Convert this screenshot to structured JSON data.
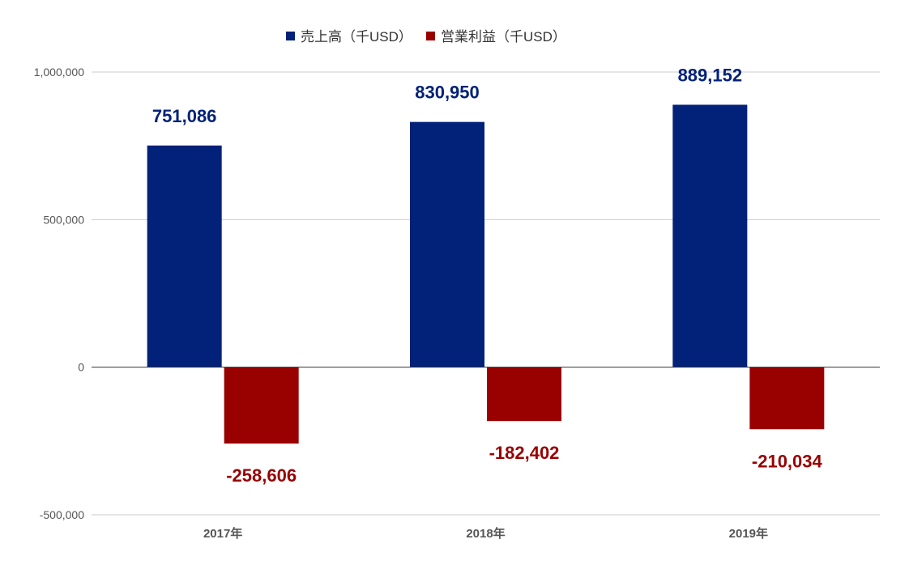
{
  "chart_data": {
    "type": "bar",
    "title": "",
    "xlabel": "",
    "ylabel": "",
    "categories": [
      "2017年",
      "2018年",
      "2019年"
    ],
    "series": [
      {
        "name": "売上高（千USD）",
        "color": "#022178",
        "values": [
          751086,
          830950,
          889152
        ],
        "labels": [
          "751,086",
          "830,950",
          "889,152"
        ]
      },
      {
        "name": "営業利益（千USD）",
        "color": "#990000",
        "values": [
          -258606,
          -182402,
          -210034
        ],
        "labels": [
          "-258,606",
          "-182,402",
          "-210,034"
        ]
      }
    ],
    "ylim": [
      -500000,
      1000000
    ],
    "yticks": [
      {
        "value": 1000000,
        "label": "1,000,000"
      },
      {
        "value": 500000,
        "label": "500,000"
      },
      {
        "value": 0,
        "label": "0"
      },
      {
        "value": -500000,
        "label": "-500,000"
      }
    ],
    "grid": true,
    "legend": "top-center"
  }
}
